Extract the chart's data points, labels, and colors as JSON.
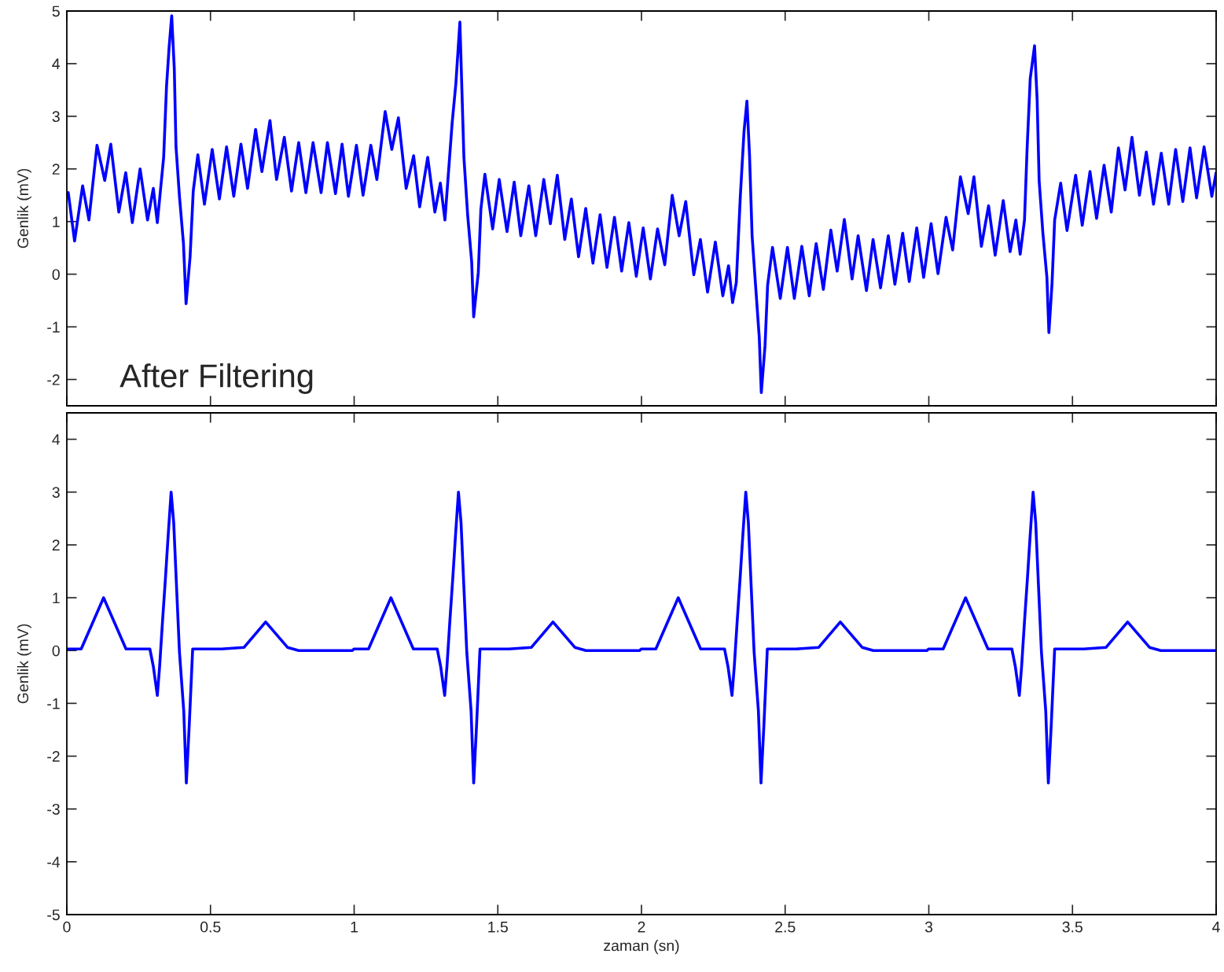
{
  "chart_data": [
    {
      "type": "line",
      "ylabel": "Genlik (mV)",
      "annotations": [
        "After Filtering"
      ],
      "xlim": [
        0,
        4
      ],
      "ylim": [
        -2.5,
        5
      ],
      "xticks": [
        0,
        0.5,
        1,
        1.5,
        2,
        2.5,
        3,
        3.5,
        4
      ],
      "yticks": [
        -2,
        -1,
        0,
        1,
        2,
        3,
        4,
        5
      ],
      "tick_labels": "y",
      "grid": false,
      "legend": false,
      "x": [
        0,
        0.005,
        0.027,
        0.055,
        0.077,
        0.105,
        0.132,
        0.153,
        0.181,
        0.205,
        0.228,
        0.255,
        0.281,
        0.301,
        0.315,
        0.337,
        0.347,
        0.356,
        0.365,
        0.374,
        0.38,
        0.392,
        0.406,
        0.415,
        0.429,
        0.44,
        0.456,
        0.479,
        0.506,
        0.531,
        0.556,
        0.581,
        0.606,
        0.629,
        0.657,
        0.679,
        0.707,
        0.73,
        0.757,
        0.782,
        0.807,
        0.832,
        0.857,
        0.885,
        0.907,
        0.935,
        0.958,
        0.98,
        1.008,
        1.031,
        1.058,
        1.079,
        1.108,
        1.131,
        1.154,
        1.181,
        1.207,
        1.228,
        1.256,
        1.281,
        1.3,
        1.316,
        1.341,
        1.354,
        1.368,
        1.382,
        1.395,
        1.409,
        1.416,
        1.432,
        1.441,
        1.455,
        1.482,
        1.505,
        1.532,
        1.557,
        1.58,
        1.608,
        1.632,
        1.66,
        1.683,
        1.707,
        1.733,
        1.756,
        1.781,
        1.806,
        1.831,
        1.856,
        1.88,
        1.906,
        1.931,
        1.956,
        1.982,
        2.006,
        2.031,
        2.056,
        2.081,
        2.107,
        2.131,
        2.154,
        2.182,
        2.205,
        2.23,
        2.257,
        2.283,
        2.303,
        2.317,
        2.33,
        2.344,
        2.357,
        2.367,
        2.376,
        2.385,
        2.399,
        2.41,
        2.417,
        2.43,
        2.439,
        2.456,
        2.483,
        2.508,
        2.532,
        2.558,
        2.584,
        2.608,
        2.633,
        2.659,
        2.681,
        2.706,
        2.733,
        2.754,
        2.783,
        2.806,
        2.832,
        2.859,
        2.882,
        2.909,
        2.932,
        2.958,
        2.982,
        3.008,
        3.032,
        3.06,
        3.083,
        3.11,
        3.137,
        3.157,
        3.183,
        3.208,
        3.231,
        3.259,
        3.283,
        3.303,
        3.318,
        3.333,
        3.342,
        3.353,
        3.368,
        3.377,
        3.384,
        3.397,
        3.411,
        3.418,
        3.429,
        3.438,
        3.459,
        3.481,
        3.511,
        3.534,
        3.561,
        3.584,
        3.61,
        3.635,
        3.66,
        3.683,
        3.707,
        3.733,
        3.757,
        3.782,
        3.809,
        3.835,
        3.859,
        3.884,
        3.909,
        3.932,
        3.958,
        3.985,
        4.0
      ],
      "series": [
        {
          "color": "#0000ff",
          "values": [
            1.53,
            1.55,
            0.63,
            1.68,
            1.03,
            2.45,
            1.78,
            2.47,
            1.18,
            1.93,
            0.98,
            2.0,
            1.03,
            1.63,
            0.98,
            2.22,
            3.57,
            4.31,
            4.91,
            3.91,
            2.42,
            1.48,
            0.58,
            -0.56,
            0.33,
            1.58,
            2.27,
            1.33,
            2.37,
            1.43,
            2.42,
            1.48,
            2.47,
            1.63,
            2.75,
            1.95,
            2.92,
            1.8,
            2.6,
            1.58,
            2.5,
            1.55,
            2.5,
            1.55,
            2.5,
            1.53,
            2.47,
            1.48,
            2.45,
            1.5,
            2.45,
            1.8,
            3.09,
            2.37,
            2.97,
            1.63,
            2.25,
            1.28,
            2.22,
            1.18,
            1.73,
            1.03,
            2.87,
            3.62,
            4.79,
            2.22,
            1.13,
            0.24,
            -0.81,
            0.03,
            1.23,
            1.9,
            0.86,
            1.8,
            0.81,
            1.75,
            0.73,
            1.68,
            0.73,
            1.8,
            0.96,
            1.88,
            0.66,
            1.43,
            0.33,
            1.25,
            0.21,
            1.13,
            0.13,
            1.08,
            0.06,
            0.98,
            -0.04,
            0.88,
            -0.09,
            0.86,
            0.18,
            1.5,
            0.73,
            1.38,
            -0.01,
            0.66,
            -0.34,
            0.61,
            -0.41,
            0.16,
            -0.54,
            -0.16,
            1.48,
            2.72,
            3.29,
            2.27,
            0.73,
            -0.36,
            -1.21,
            -2.25,
            -1.36,
            -0.21,
            0.51,
            -0.46,
            0.51,
            -0.46,
            0.53,
            -0.41,
            0.58,
            -0.29,
            0.84,
            0.06,
            1.04,
            -0.09,
            0.73,
            -0.31,
            0.66,
            -0.26,
            0.73,
            -0.19,
            0.78,
            -0.14,
            0.88,
            -0.06,
            0.96,
            0.01,
            1.08,
            0.46,
            1.85,
            1.15,
            1.85,
            0.53,
            1.3,
            0.36,
            1.4,
            0.43,
            1.03,
            0.38,
            1.03,
            2.37,
            3.72,
            4.34,
            3.32,
            1.78,
            0.78,
            -0.06,
            -1.11,
            -0.16,
            1.03,
            1.73,
            0.83,
            1.88,
            0.93,
            1.95,
            1.06,
            2.07,
            1.18,
            2.4,
            1.6,
            2.6,
            1.5,
            2.32,
            1.33,
            2.3,
            1.33,
            2.37,
            1.38,
            2.4,
            1.45,
            2.42,
            1.48,
            1.93
          ]
        }
      ]
    },
    {
      "type": "line",
      "xlabel": "zaman (sn)",
      "ylabel": "Genlik (mV)",
      "xlim": [
        0,
        4
      ],
      "ylim": [
        -5,
        4.5
      ],
      "xticks": [
        0,
        0.5,
        1,
        1.5,
        2,
        2.5,
        3,
        3.5,
        4
      ],
      "yticks": [
        -5,
        -4,
        -3,
        -2,
        -1,
        0,
        1,
        2,
        3,
        4
      ],
      "grid": false,
      "legend": false,
      "x": [
        0,
        0.05,
        0.128,
        0.206,
        0.289,
        0.301,
        0.315,
        0.323,
        0.333,
        0.343,
        0.353,
        0.363,
        0.372,
        0.382,
        0.392,
        0.407,
        0.416,
        0.426,
        0.438,
        0.538,
        0.617,
        0.692,
        0.768,
        0.807,
        0.993,
        1,
        1.05,
        1.128,
        1.206,
        1.289,
        1.301,
        1.315,
        1.323,
        1.333,
        1.343,
        1.353,
        1.363,
        1.372,
        1.382,
        1.392,
        1.407,
        1.416,
        1.426,
        1.438,
        1.538,
        1.617,
        1.692,
        1.768,
        1.807,
        1.993,
        2,
        2.05,
        2.128,
        2.206,
        2.289,
        2.301,
        2.315,
        2.323,
        2.333,
        2.343,
        2.353,
        2.363,
        2.372,
        2.382,
        2.392,
        2.407,
        2.416,
        2.426,
        2.438,
        2.538,
        2.617,
        2.692,
        2.768,
        2.807,
        2.993,
        3,
        3.05,
        3.128,
        3.206,
        3.289,
        3.301,
        3.315,
        3.323,
        3.333,
        3.343,
        3.353,
        3.363,
        3.372,
        3.382,
        3.392,
        3.407,
        3.416,
        3.426,
        3.438,
        3.538,
        3.617,
        3.692,
        3.768,
        3.807,
        3.993,
        4.0
      ],
      "series": [
        {
          "color": "#0000ff",
          "values": [
            0.03,
            0.03,
            1.0,
            0.03,
            0.03,
            -0.3,
            -0.85,
            -0.3,
            0.55,
            1.35,
            2.2,
            3.0,
            2.42,
            1.19,
            -0.03,
            -1.15,
            -2.51,
            -1.42,
            0.03,
            0.03,
            0.06,
            0.54,
            0.06,
            0.0,
            0.0,
            0.03,
            0.03,
            1.0,
            0.03,
            0.03,
            -0.3,
            -0.85,
            -0.3,
            0.55,
            1.35,
            2.2,
            3.0,
            2.42,
            1.19,
            -0.03,
            -1.15,
            -2.51,
            -1.42,
            0.03,
            0.03,
            0.06,
            0.54,
            0.06,
            0.0,
            0.0,
            0.03,
            0.03,
            1.0,
            0.03,
            0.03,
            -0.3,
            -0.85,
            -0.3,
            0.55,
            1.35,
            2.2,
            3.0,
            2.42,
            1.19,
            -0.03,
            -1.15,
            -2.51,
            -1.42,
            0.03,
            0.03,
            0.06,
            0.54,
            0.06,
            0.0,
            0.0,
            0.03,
            0.03,
            1.0,
            0.03,
            0.03,
            -0.3,
            -0.85,
            -0.3,
            0.55,
            1.35,
            2.2,
            3.0,
            2.42,
            1.19,
            -0.03,
            -1.15,
            -2.51,
            -1.42,
            0.03,
            0.03,
            0.06,
            0.54,
            0.06,
            0.0,
            0.0,
            0.0
          ]
        }
      ]
    }
  ]
}
